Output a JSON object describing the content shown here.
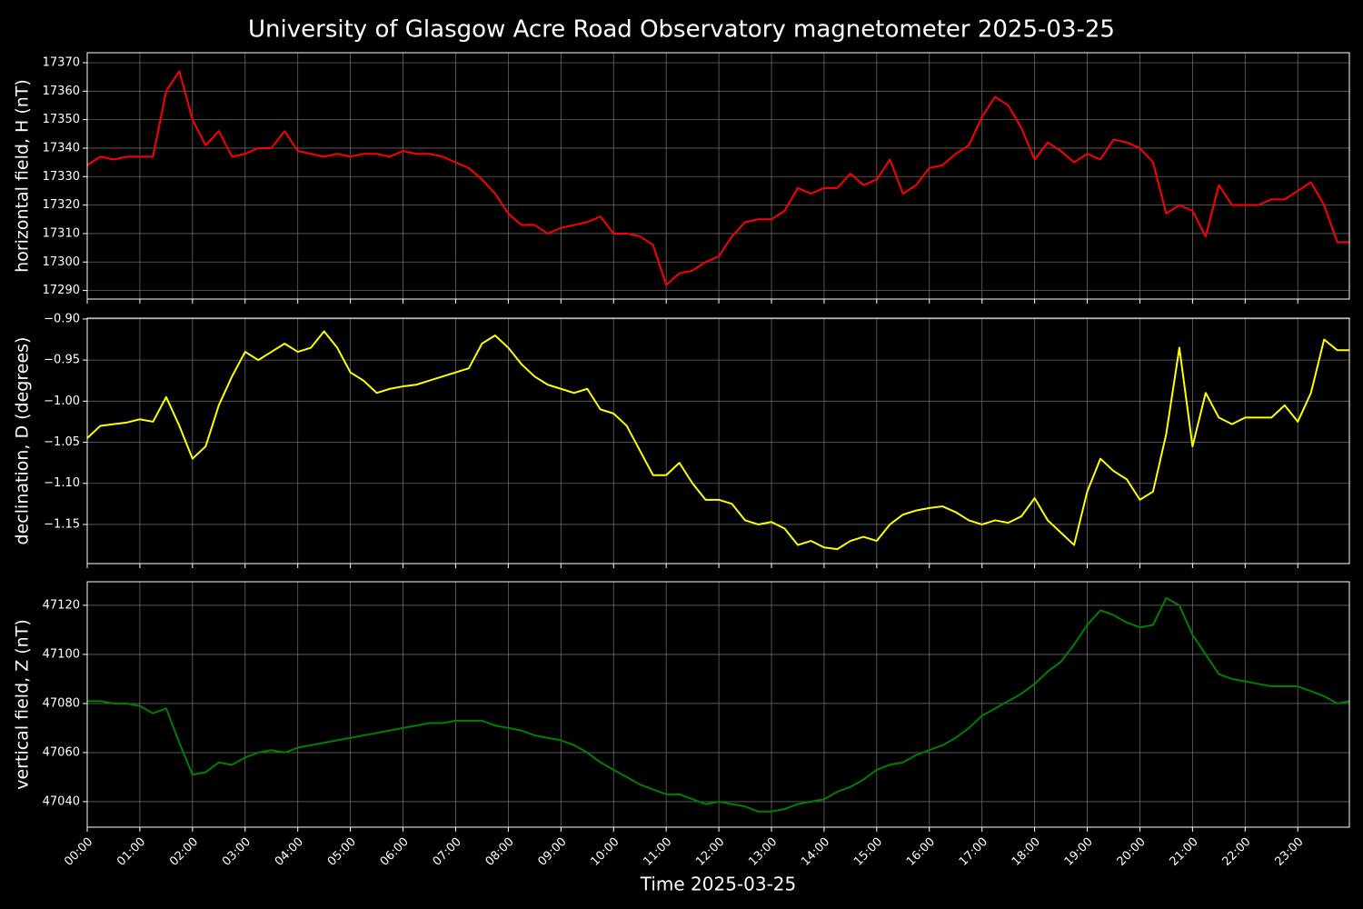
{
  "chart_data": [
    {
      "type": "line",
      "title": "University of Glasgow Acre Road Observatory magnetometer 2025-03-25",
      "ylabel": "horizontal field, H (nT)",
      "grid": true,
      "color": "#ff0000",
      "xlim": [
        0,
        23.98
      ],
      "ylim": [
        17287,
        17373.5
      ],
      "yticks": [
        17290,
        17300,
        17310,
        17320,
        17330,
        17340,
        17350,
        17360,
        17370
      ],
      "x": [
        0,
        0.25,
        0.5,
        0.75,
        1,
        1.25,
        1.5,
        1.75,
        2,
        2.25,
        2.5,
        2.75,
        3,
        3.25,
        3.5,
        3.75,
        4,
        4.25,
        4.5,
        4.75,
        5,
        5.25,
        5.5,
        5.75,
        6,
        6.25,
        6.5,
        6.75,
        7,
        7.25,
        7.5,
        7.75,
        8,
        8.25,
        8.5,
        8.75,
        9,
        9.25,
        9.5,
        9.75,
        10,
        10.25,
        10.5,
        10.75,
        11,
        11.25,
        11.5,
        11.75,
        12,
        12.25,
        12.5,
        12.75,
        13,
        13.25,
        13.5,
        13.75,
        14,
        14.25,
        14.5,
        14.75,
        15,
        15.25,
        15.5,
        15.75,
        16,
        16.25,
        16.5,
        16.75,
        17,
        17.25,
        17.5,
        17.75,
        18,
        18.25,
        18.5,
        18.75,
        19,
        19.25,
        19.5,
        19.75,
        20,
        20.25,
        20.5,
        20.75,
        21,
        21.25,
        21.5,
        21.75,
        22,
        22.25,
        22.5,
        22.75,
        23,
        23.25,
        23.5,
        23.75,
        23.98
      ],
      "values": [
        17334,
        17337,
        17336,
        17337,
        17337,
        17337,
        17360,
        17367,
        17350,
        17341,
        17346,
        17337,
        17338,
        17340,
        17340,
        17346,
        17339,
        17338,
        17337,
        17338,
        17337,
        17338,
        17338,
        17337,
        17339,
        17338,
        17338,
        17337,
        17335,
        17333,
        17329,
        17324,
        17317,
        17313,
        17313,
        17310,
        17312,
        17313,
        17314,
        17316,
        17310,
        17310,
        17309,
        17306,
        17292,
        17296,
        17297,
        17300,
        17302,
        17309,
        17314,
        17315,
        17315,
        17318,
        17326,
        17324,
        17326,
        17326,
        17331,
        17327,
        17329,
        17336,
        17324,
        17327,
        17333,
        17334,
        17338,
        17341,
        17351,
        17358,
        17355,
        17347,
        17336,
        17342,
        17339,
        17335,
        17338,
        17336,
        17343,
        17342,
        17340,
        17335,
        17317,
        17320,
        17318,
        17309,
        17327,
        17320,
        17320,
        17320,
        17322,
        17322,
        17325,
        17328,
        17320,
        17307,
        17307
      ]
    },
    {
      "type": "line",
      "ylabel": "declination, D (degrees)",
      "grid": true,
      "color": "#ffff00",
      "xlim": [
        0,
        23.98
      ],
      "ylim": [
        -1.1976,
        -0.899
      ],
      "yticks": [
        {
          "value": -0.9,
          "label": "−0.90"
        },
        {
          "value": -0.95,
          "label": "−0.95"
        },
        {
          "value": -1.0,
          "label": "−1.00"
        },
        {
          "value": -1.05,
          "label": "−1.05"
        },
        {
          "value": -1.1,
          "label": "−1.10"
        },
        {
          "value": -1.15,
          "label": "−1.15"
        }
      ],
      "x": [
        0,
        0.25,
        0.5,
        0.75,
        1,
        1.25,
        1.5,
        1.75,
        2,
        2.25,
        2.5,
        2.75,
        3,
        3.25,
        3.5,
        3.75,
        4,
        4.25,
        4.5,
        4.75,
        5,
        5.25,
        5.5,
        5.75,
        6,
        6.25,
        6.5,
        6.75,
        7,
        7.25,
        7.5,
        7.75,
        8,
        8.25,
        8.5,
        8.75,
        9,
        9.25,
        9.5,
        9.75,
        10,
        10.25,
        10.5,
        10.75,
        11,
        11.25,
        11.5,
        11.75,
        12,
        12.25,
        12.5,
        12.75,
        13,
        13.25,
        13.5,
        13.75,
        14,
        14.25,
        14.5,
        14.75,
        15,
        15.25,
        15.5,
        15.75,
        16,
        16.25,
        16.5,
        16.75,
        17,
        17.25,
        17.5,
        17.75,
        18,
        18.25,
        18.5,
        18.75,
        19,
        19.25,
        19.5,
        19.75,
        20,
        20.25,
        20.5,
        20.75,
        21,
        21.25,
        21.5,
        21.75,
        22,
        22.25,
        22.5,
        22.75,
        23,
        23.25,
        23.5,
        23.75,
        23.98
      ],
      "values": [
        -1.045,
        -1.03,
        -1.028,
        -1.026,
        -1.022,
        -1.025,
        -0.995,
        -1.03,
        -1.07,
        -1.055,
        -1.005,
        -0.97,
        -0.94,
        -0.95,
        -0.94,
        -0.93,
        -0.94,
        -0.935,
        -0.915,
        -0.935,
        -0.965,
        -0.975,
        -0.99,
        -0.985,
        -0.982,
        -0.98,
        -0.975,
        -0.97,
        -0.965,
        -0.96,
        -0.93,
        -0.92,
        -0.935,
        -0.955,
        -0.97,
        -0.98,
        -0.985,
        -0.99,
        -0.985,
        -1.01,
        -1.015,
        -1.03,
        -1.06,
        -1.09,
        -1.09,
        -1.075,
        -1.1,
        -1.12,
        -1.12,
        -1.125,
        -1.145,
        -1.15,
        -1.147,
        -1.155,
        -1.175,
        -1.17,
        -1.178,
        -1.18,
        -1.17,
        -1.165,
        -1.17,
        -1.15,
        -1.138,
        -1.133,
        -1.13,
        -1.128,
        -1.135,
        -1.145,
        -1.15,
        -1.145,
        -1.148,
        -1.14,
        -1.118,
        -1.145,
        -1.16,
        -1.175,
        -1.11,
        -1.07,
        -1.085,
        -1.095,
        -1.12,
        -1.11,
        -1.04,
        -0.935,
        -1.055,
        -0.99,
        -1.02,
        -1.028,
        -1.02,
        -1.02,
        -1.02,
        -1.005,
        -1.025,
        -0.99,
        -0.925,
        -0.938,
        -0.938
      ]
    },
    {
      "type": "line",
      "ylabel": "vertical field, Z (nT)",
      "xlabel": "Time 2025-03-25",
      "grid": true,
      "color": "#008000",
      "xlim": [
        0,
        23.98
      ],
      "ylim": [
        47029.6,
        47129.6
      ],
      "yticks": [
        47040,
        47060,
        47080,
        47100,
        47120
      ],
      "xticks": [
        {
          "value": 0,
          "label": "00:00"
        },
        {
          "value": 1,
          "label": "01:00"
        },
        {
          "value": 2,
          "label": "02:00"
        },
        {
          "value": 3,
          "label": "03:00"
        },
        {
          "value": 4,
          "label": "04:00"
        },
        {
          "value": 5,
          "label": "05:00"
        },
        {
          "value": 6,
          "label": "06:00"
        },
        {
          "value": 7,
          "label": "07:00"
        },
        {
          "value": 8,
          "label": "08:00"
        },
        {
          "value": 9,
          "label": "09:00"
        },
        {
          "value": 10,
          "label": "10:00"
        },
        {
          "value": 11,
          "label": "11:00"
        },
        {
          "value": 12,
          "label": "12:00"
        },
        {
          "value": 13,
          "label": "13:00"
        },
        {
          "value": 14,
          "label": "14:00"
        },
        {
          "value": 15,
          "label": "15:00"
        },
        {
          "value": 16,
          "label": "16:00"
        },
        {
          "value": 17,
          "label": "17:00"
        },
        {
          "value": 18,
          "label": "18:00"
        },
        {
          "value": 19,
          "label": "19:00"
        },
        {
          "value": 20,
          "label": "20:00"
        },
        {
          "value": 21,
          "label": "21:00"
        },
        {
          "value": 22,
          "label": "22:00"
        },
        {
          "value": 23,
          "label": "23:00"
        }
      ],
      "x": [
        0,
        0.25,
        0.5,
        0.75,
        1,
        1.25,
        1.5,
        1.75,
        2,
        2.25,
        2.5,
        2.75,
        3,
        3.25,
        3.5,
        3.75,
        4,
        4.25,
        4.5,
        4.75,
        5,
        5.25,
        5.5,
        5.75,
        6,
        6.25,
        6.5,
        6.75,
        7,
        7.25,
        7.5,
        7.75,
        8,
        8.25,
        8.5,
        8.75,
        9,
        9.25,
        9.5,
        9.75,
        10,
        10.25,
        10.5,
        10.75,
        11,
        11.25,
        11.5,
        11.75,
        12,
        12.25,
        12.5,
        12.75,
        13,
        13.25,
        13.5,
        13.75,
        14,
        14.25,
        14.5,
        14.75,
        15,
        15.25,
        15.5,
        15.75,
        16,
        16.25,
        16.5,
        16.75,
        17,
        17.25,
        17.5,
        17.75,
        18,
        18.25,
        18.5,
        18.75,
        19,
        19.25,
        19.5,
        19.75,
        20,
        20.25,
        20.5,
        20.75,
        21,
        21.25,
        21.5,
        21.75,
        22,
        22.25,
        22.5,
        22.75,
        23,
        23.25,
        23.5,
        23.75,
        23.98
      ],
      "values": [
        47081,
        47081,
        47080,
        47080,
        47079,
        47076,
        47078,
        47064,
        47051,
        47052,
        47056,
        47055,
        47058,
        47060,
        47061,
        47060,
        47062,
        47063,
        47064,
        47065,
        47066,
        47067,
        47068,
        47069,
        47070,
        47071,
        47072,
        47072,
        47073,
        47073,
        47073,
        47071,
        47070,
        47069,
        47067,
        47066,
        47065,
        47063,
        47060,
        47056,
        47053,
        47050,
        47047,
        47045,
        47043,
        47043,
        47041,
        47039,
        47040,
        47039,
        47038,
        47036,
        47036,
        47037,
        47039,
        47040,
        47041,
        47044,
        47046,
        47049,
        47053,
        47055,
        47056,
        47059,
        47061,
        47063,
        47066,
        47070,
        47075,
        47078,
        47081,
        47084,
        47088,
        47093,
        47097,
        47104,
        47112,
        47118,
        47116,
        47113,
        47111,
        47112,
        47123,
        47120,
        47108,
        47100,
        47092,
        47090,
        47089,
        47088,
        47087,
        47087,
        47087,
        47085,
        47083,
        47080,
        47081
      ]
    }
  ]
}
